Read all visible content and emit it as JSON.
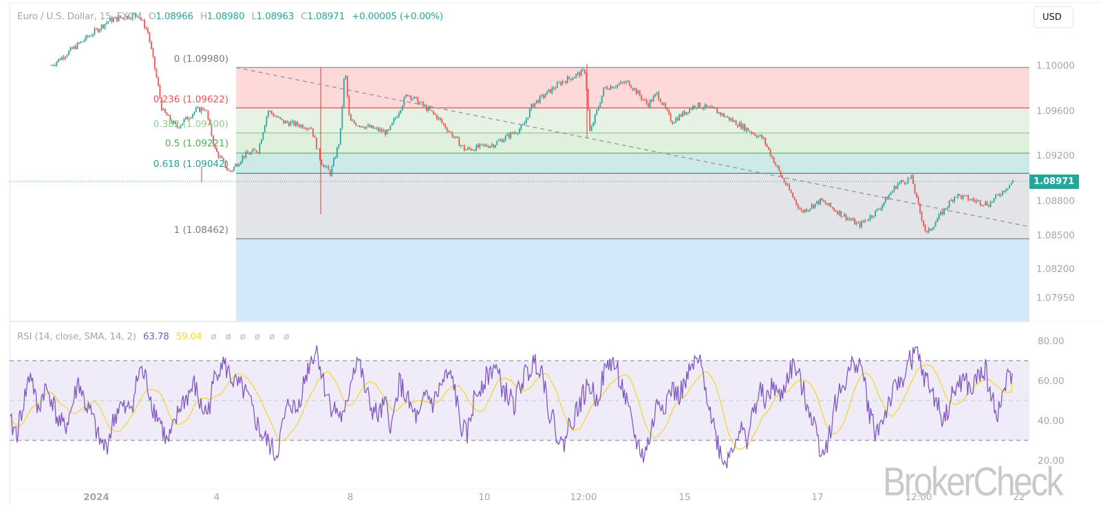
{
  "header": {
    "symbol": "Euro / U.S. Dollar, 15, FXCM",
    "open_label": "O",
    "open": "1.08966",
    "high_label": "H",
    "high": "1.08980",
    "low_label": "L",
    "low": "1.08963",
    "close_label": "C",
    "close": "1.08971",
    "change": "+0.00005 (+0.00%)"
  },
  "currency_button": "USD",
  "last_price_badge": "1.08971",
  "rsi_legend": {
    "title": "RSI (14, close, SMA, 14, 2)",
    "rsi_value": "63.78",
    "ma_value": "59.04",
    "na_values": [
      "ø",
      "ø",
      "ø",
      "ø",
      "ø",
      "ø"
    ]
  },
  "watermark": "BrokerCheck",
  "colors": {
    "up": "#26a69a",
    "down": "#ef5350",
    "rsi_line": "#7e57c2",
    "rsi_ma": "#f5d72e",
    "fib_0": "#787b86",
    "fib_0236": "#f23645",
    "fib_0382": "#81c784",
    "fib_05": "#4caf50",
    "fib_0618": "#089981",
    "fib_1": "#787b86"
  },
  "chart_data": [
    {
      "type": "candlestick",
      "title": "Euro / U.S. Dollar, 15, FXCM",
      "interval": "15",
      "ohlc_last": {
        "open": 1.08966,
        "high": 1.0898,
        "low": 1.08963,
        "close": 1.08971,
        "change": 5e-05,
        "change_pct": 0.0
      },
      "y_ticks": [
        "1.10000",
        "1.09600",
        "1.09200",
        "1.08800",
        "1.08500",
        "1.08200",
        "1.07950"
      ],
      "ylim": [
        1.077,
        1.1053
      ],
      "x_ticks": [
        "2024",
        "4",
        "8",
        "10",
        "12:00",
        "15",
        "17",
        "12:00",
        "22"
      ],
      "last_price": 1.08971,
      "price_path": [
        {
          "x": 0.0,
          "price": 1.1
        },
        {
          "x": 0.06,
          "price": 1.104
        },
        {
          "x": 0.09,
          "price": 1.1045
        },
        {
          "x": 0.1,
          "price": 1.103
        },
        {
          "x": 0.11,
          "price": 1.0985
        },
        {
          "x": 0.115,
          "price": 1.096
        },
        {
          "x": 0.13,
          "price": 1.0945
        },
        {
          "x": 0.15,
          "price": 1.096
        },
        {
          "x": 0.16,
          "price": 1.0962
        },
        {
          "x": 0.17,
          "price": 1.0925
        },
        {
          "x": 0.185,
          "price": 1.0905
        },
        {
          "x": 0.2,
          "price": 1.092
        },
        {
          "x": 0.215,
          "price": 1.0925
        },
        {
          "x": 0.225,
          "price": 1.096
        },
        {
          "x": 0.24,
          "price": 1.095
        },
        {
          "x": 0.27,
          "price": 1.0945
        },
        {
          "x": 0.28,
          "price": 1.0915
        },
        {
          "x": 0.29,
          "price": 1.0904
        },
        {
          "x": 0.3,
          "price": 1.0935
        },
        {
          "x": 0.305,
          "price": 1.0998
        },
        {
          "x": 0.31,
          "price": 1.095
        },
        {
          "x": 0.33,
          "price": 1.0945
        },
        {
          "x": 0.35,
          "price": 1.094
        },
        {
          "x": 0.37,
          "price": 1.0975
        },
        {
          "x": 0.4,
          "price": 1.0955
        },
        {
          "x": 0.43,
          "price": 1.0925
        },
        {
          "x": 0.46,
          "price": 1.093
        },
        {
          "x": 0.49,
          "price": 1.0945
        },
        {
          "x": 0.5,
          "price": 1.0965
        },
        {
          "x": 0.53,
          "price": 1.0985
        },
        {
          "x": 0.555,
          "price": 1.0995
        },
        {
          "x": 0.56,
          "price": 1.094
        },
        {
          "x": 0.575,
          "price": 1.098
        },
        {
          "x": 0.6,
          "price": 1.0985
        },
        {
          "x": 0.62,
          "price": 1.0965
        },
        {
          "x": 0.63,
          "price": 1.0975
        },
        {
          "x": 0.645,
          "price": 1.095
        },
        {
          "x": 0.67,
          "price": 1.0965
        },
        {
          "x": 0.69,
          "price": 1.096
        },
        {
          "x": 0.71,
          "price": 1.095
        },
        {
          "x": 0.74,
          "price": 1.0935
        },
        {
          "x": 0.76,
          "price": 1.09
        },
        {
          "x": 0.78,
          "price": 1.087
        },
        {
          "x": 0.8,
          "price": 1.088
        },
        {
          "x": 0.84,
          "price": 1.0858
        },
        {
          "x": 0.86,
          "price": 1.0872
        },
        {
          "x": 0.88,
          "price": 1.0895
        },
        {
          "x": 0.895,
          "price": 1.09
        },
        {
          "x": 0.9,
          "price": 1.088
        },
        {
          "x": 0.91,
          "price": 1.085
        },
        {
          "x": 0.92,
          "price": 1.0862
        },
        {
          "x": 0.94,
          "price": 1.0885
        },
        {
          "x": 0.96,
          "price": 1.088
        },
        {
          "x": 0.975,
          "price": 1.0877
        },
        {
          "x": 1.0,
          "price": 1.08971
        }
      ],
      "fibonacci_retracement": {
        "levels": [
          {
            "ratio": "0",
            "price": 1.0998,
            "label": "0 (1.09980)"
          },
          {
            "ratio": "0.236",
            "price": 1.09622,
            "label": "0.236 (1.09622)"
          },
          {
            "ratio": "0.382",
            "price": 1.094,
            "label": "0.382 (1.09400)"
          },
          {
            "ratio": "0.5",
            "price": 1.09221,
            "label": "0.5 (1.09221)"
          },
          {
            "ratio": "0.618",
            "price": 1.09042,
            "label": "0.618 (1.09042)"
          },
          {
            "ratio": "1",
            "price": 1.08462,
            "label": "1 (1.08462)"
          }
        ],
        "trend_line": {
          "from_price": 1.0998,
          "to_price": 1.086
        }
      }
    },
    {
      "type": "line",
      "title": "RSI (14, close, SMA, 14, 2)",
      "series": [
        {
          "name": "RSI",
          "color": "#7e57c2",
          "last": 63.78
        },
        {
          "name": "RSI-based MA (SMA 14)",
          "color": "#f5d72e",
          "last": 59.04
        }
      ],
      "y_ticks": [
        "80.00",
        "60.00",
        "40.00",
        "20.00"
      ],
      "bands": {
        "upper": 70,
        "middle": 50,
        "lower": 30
      },
      "ylim": [
        15,
        83
      ],
      "rsi_path": [
        38,
        34,
        50,
        65,
        44,
        56,
        52,
        40,
        36,
        46,
        60,
        48,
        42,
        30,
        26,
        38,
        48,
        44,
        50,
        66,
        60,
        46,
        40,
        28,
        36,
        48,
        52,
        58,
        46,
        44,
        62,
        70,
        64,
        58,
        56,
        50,
        40,
        32,
        28,
        22,
        38,
        50,
        44,
        58,
        70,
        76,
        58,
        48,
        44,
        40,
        62,
        72,
        56,
        46,
        42,
        48,
        36,
        60,
        52,
        44,
        40,
        54,
        48,
        56,
        62,
        60,
        38,
        32,
        50,
        58,
        62,
        68,
        58,
        52,
        48,
        60,
        64,
        70,
        66,
        46,
        36,
        26,
        38,
        44,
        52,
        58,
        50,
        62,
        70,
        66,
        54,
        40,
        28,
        22,
        34,
        50,
        48,
        56,
        52,
        58,
        66,
        70,
        58,
        40,
        26,
        18,
        28,
        36,
        30,
        44,
        54,
        50,
        58,
        50,
        62,
        68,
        58,
        48,
        38,
        24,
        30,
        48,
        56,
        64,
        70,
        66,
        44,
        34,
        40,
        50,
        56,
        62,
        70,
        74,
        62,
        56,
        48,
        40,
        50,
        58,
        60,
        54,
        62,
        66,
        50,
        44,
        58,
        64
      ]
    }
  ]
}
